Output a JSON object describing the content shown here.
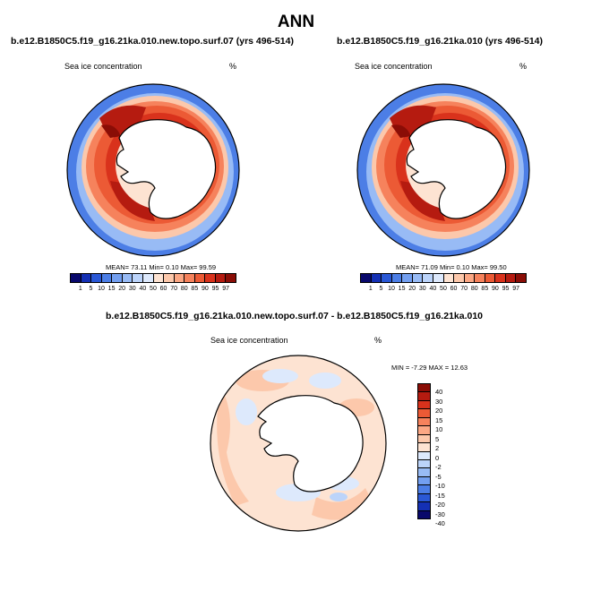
{
  "page_title": "ANN",
  "panels": [
    {
      "title": "b.e12.B1850C5.f19_g16.21ka.010.new.topo.surf.07 (yrs 496-514)",
      "left_label": "Sea ice concentration",
      "right_label": "%",
      "stats": "MEAN=  73.11  Min=   0.10  Max=  99.59"
    },
    {
      "title": "b.e12.B1850C5.f19_g16.21ka.010 (yrs 496-514)",
      "left_label": "Sea ice concentration",
      "right_label": "%",
      "stats": "MEAN=  71.09  Min=   0.10  Max=  99.50"
    }
  ],
  "abs_colorbar": {
    "labels": [
      "1",
      "5",
      "10",
      "15",
      "20",
      "30",
      "40",
      "50",
      "60",
      "70",
      "80",
      "85",
      "90",
      "95",
      "97"
    ],
    "colors": [
      "#08086b",
      "#1430b4",
      "#2a58d6",
      "#4c7ee6",
      "#739ff0",
      "#98bbf5",
      "#bcd4fa",
      "#dde9fc",
      "#fde3d2",
      "#fcc8ab",
      "#fba784",
      "#f6825c",
      "#ec5a35",
      "#d9321c",
      "#b51b10",
      "#8a0d06"
    ]
  },
  "diff": {
    "title": "b.e12.B1850C5.f19_g16.21ka.010.new.topo.surf.07 - b.e12.B1850C5.f19_g16.21ka.010",
    "left_label": "Sea ice concentration",
    "right_label": "%",
    "minmax": "MIN =  -7.29 MAX =  12.63",
    "colorbar_labels": [
      "40",
      "30",
      "20",
      "15",
      "10",
      "5",
      "2",
      "0",
      "-2",
      "-5",
      "-10",
      "-15",
      "-20",
      "-30",
      "-40"
    ],
    "colorbar_colors": [
      "#8a0d06",
      "#b51b10",
      "#d9321c",
      "#ec5a35",
      "#f6825c",
      "#fba784",
      "#fcc8ab",
      "#fde3d2",
      "#dde9fc",
      "#bcd4fa",
      "#98bbf5",
      "#739ff0",
      "#4c7ee6",
      "#2a58d6",
      "#1430b4",
      "#08086b"
    ]
  }
}
